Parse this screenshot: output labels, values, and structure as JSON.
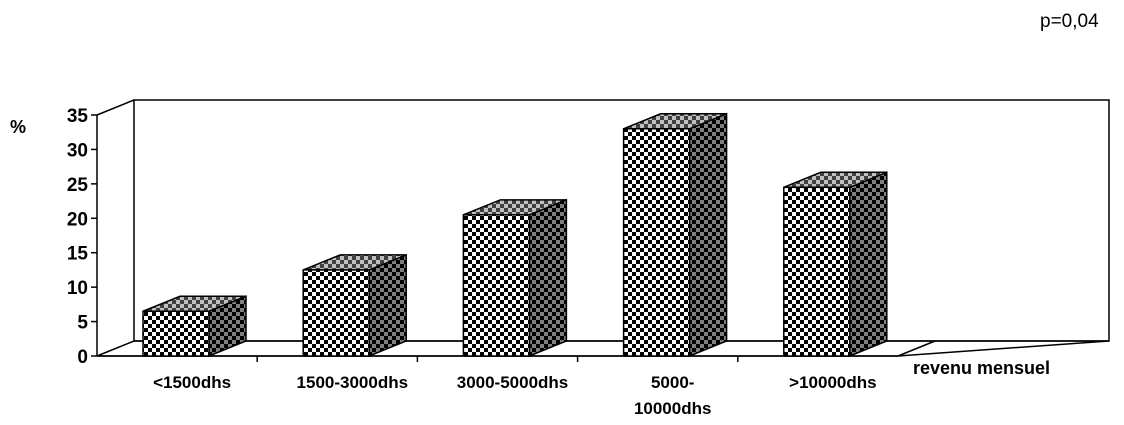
{
  "chart_data": {
    "type": "bar",
    "categories": [
      "<1500dhs",
      "1500-3000dhs",
      "3000-5000dhs",
      "5000-10000dhs",
      ">10000dhs"
    ],
    "category_label_lines": [
      [
        "<1500dhs"
      ],
      [
        "1500-3000dhs"
      ],
      [
        "3000-5000dhs"
      ],
      [
        "5000-",
        "10000dhs"
      ],
      [
        ">10000dhs"
      ]
    ],
    "values": [
      6.5,
      12.5,
      20.5,
      33,
      24.5
    ],
    "ylabel": "%",
    "xlabel": "revenu mensuel",
    "annotation": "p=0,04",
    "ylim": [
      0,
      35
    ],
    "yticks": [
      0,
      5,
      10,
      15,
      20,
      25,
      30,
      35
    ],
    "grid": false,
    "legend": "none",
    "bar_style": "3d-checkered"
  }
}
